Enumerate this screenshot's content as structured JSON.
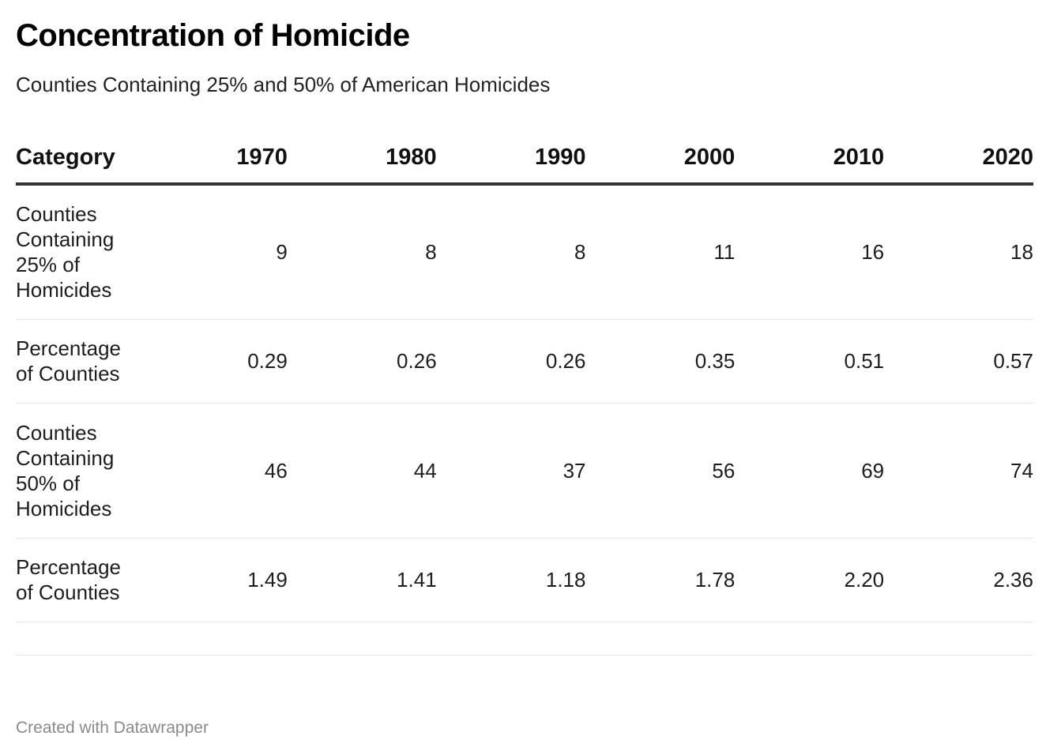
{
  "title": "Concentration of Homicide",
  "subtitle": "Counties Containing 25% and 50% of American Homicides",
  "footer": "Created with Datawrapper",
  "chart_data": {
    "type": "table",
    "columns": [
      "Category",
      "1970",
      "1980",
      "1990",
      "2000",
      "2010",
      "2020"
    ],
    "rows": [
      {
        "label": "Counties Containing 25% of Homicides",
        "values": [
          "9",
          "8",
          "8",
          "11",
          "16",
          "18"
        ]
      },
      {
        "label": "Percentage of Counties",
        "values": [
          "0.29",
          "0.26",
          "0.26",
          "0.35",
          "0.51",
          "0.57"
        ]
      },
      {
        "label": "Counties Containing 50% of Homicides",
        "values": [
          "46",
          "44",
          "37",
          "56",
          "69",
          "74"
        ]
      },
      {
        "label": "Percentage of Counties",
        "values": [
          "1.49",
          "1.41",
          "1.18",
          "1.78",
          "2.20",
          "2.36"
        ]
      }
    ]
  }
}
